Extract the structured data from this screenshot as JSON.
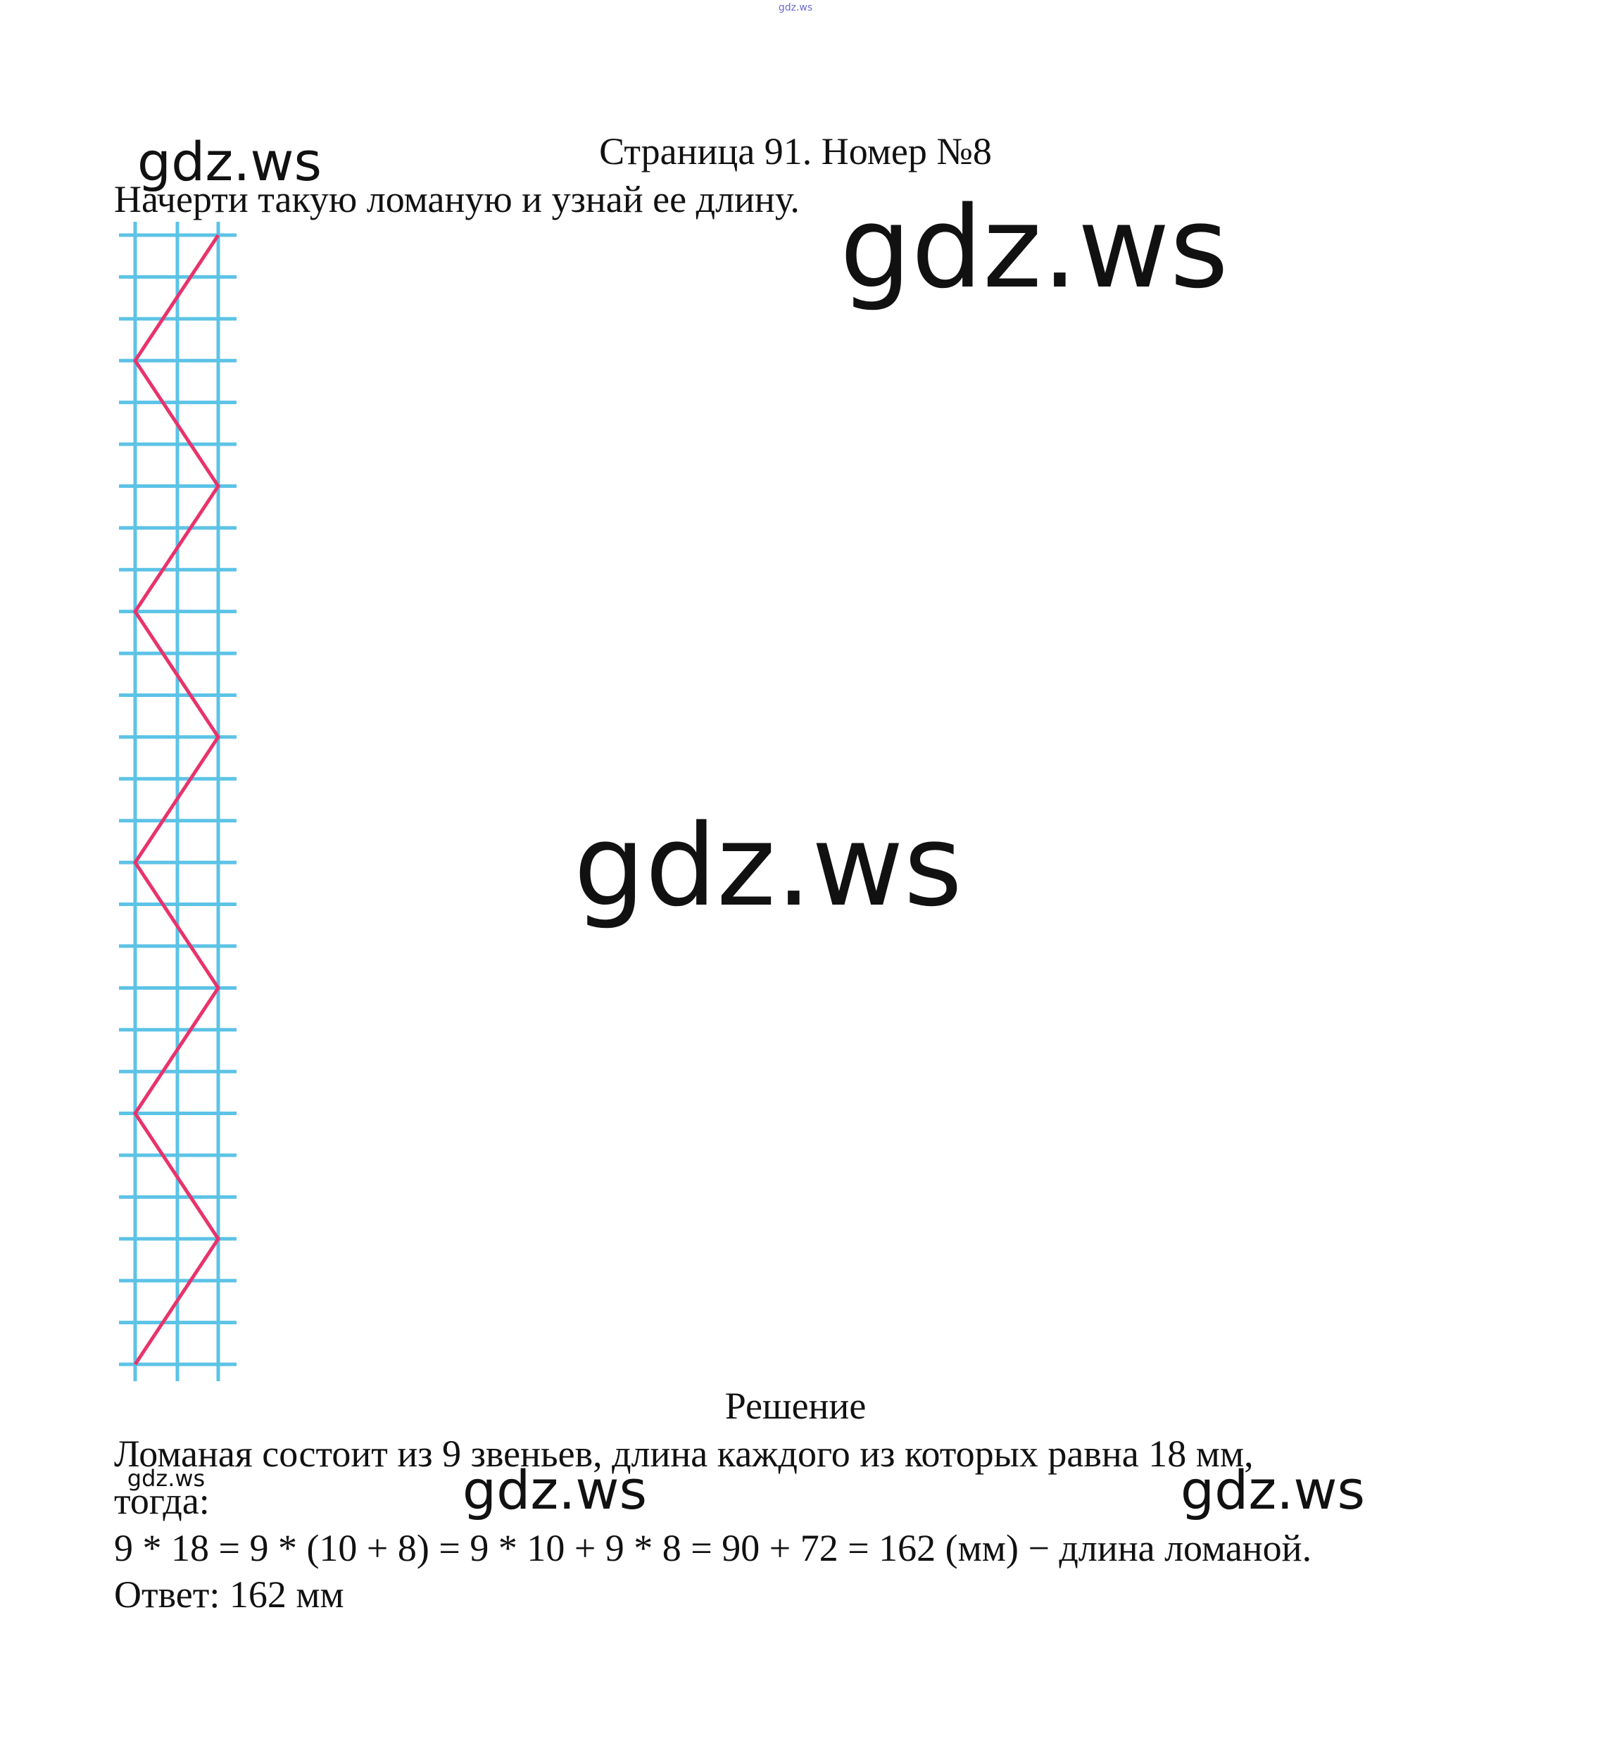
{
  "header": {
    "title": "Страница 91. Номер №8"
  },
  "task": "Начерти такую ломаную и узнай ее длину.",
  "solution": {
    "heading": "Решение",
    "lines": [
      "Ломаная состоит из 9 звеньев, длина каждого из которых равна 18 мм,",
      "тогда:",
      "9 * 18 = 9 * (10 + 8) = 9 * 10 + 9 * 8 = 90 + 72 = 162 (мм) − длина ломаной.",
      "Ответ: 162 мм"
    ]
  },
  "watermarks": [
    "gdz.ws",
    "gdz.ws",
    "gdz.ws",
    "gdz.ws",
    "gdz.ws",
    "gdz.ws",
    "gdz.ws"
  ]
}
